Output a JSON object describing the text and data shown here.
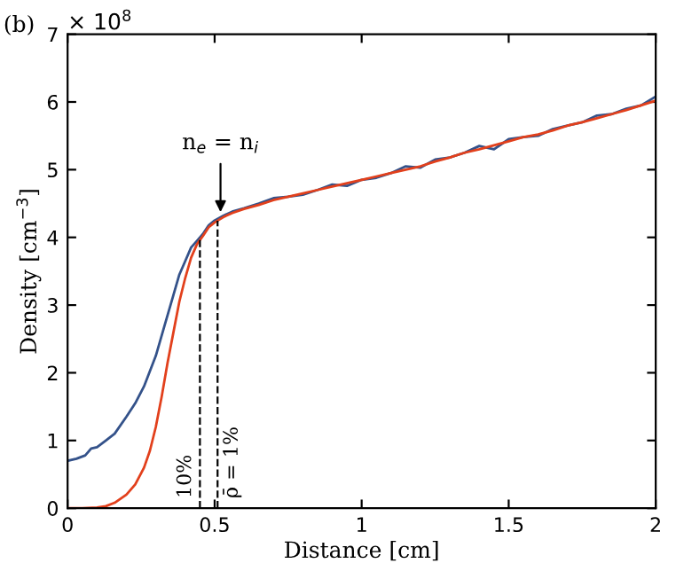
{
  "chart_data": {
    "type": "line",
    "title": "(b)",
    "xlabel": "Distance [cm]",
    "ylabel": "Density [cm$^{−3}$]",
    "xlim": [
      0,
      2
    ],
    "xticks": [
      0,
      0.5,
      1,
      1.5,
      2
    ],
    "ylim": [
      0,
      7
    ],
    "yticks": [
      0,
      1,
      2,
      3,
      4,
      5,
      6,
      7
    ],
    "series": [
      {
        "color": "#34528a",
        "x": [
          0,
          0.03,
          0.06,
          0.08,
          0.1,
          0.13,
          0.16,
          0.2,
          0.23,
          0.26,
          0.3,
          0.33,
          0.36,
          0.38,
          0.4,
          0.42,
          0.44,
          0.46,
          0.48,
          0.5,
          0.53,
          0.56,
          0.6,
          0.65,
          0.7,
          0.75,
          0.8,
          0.85,
          0.9,
          0.95,
          1.0,
          1.05,
          1.1,
          1.15,
          1.2,
          1.25,
          1.3,
          1.35,
          1.4,
          1.45,
          1.5,
          1.55,
          1.6,
          1.65,
          1.7,
          1.75,
          1.8,
          1.85,
          1.9,
          1.95,
          2.0
        ],
        "values": [
          0.7,
          0.73,
          0.78,
          0.88,
          0.9,
          1.0,
          1.1,
          1.35,
          1.55,
          1.8,
          2.25,
          2.7,
          3.15,
          3.45,
          3.65,
          3.85,
          3.95,
          4.05,
          4.18,
          4.25,
          4.32,
          4.38,
          4.43,
          4.5,
          4.58,
          4.6,
          4.63,
          4.7,
          4.78,
          4.76,
          4.85,
          4.88,
          4.95,
          5.05,
          5.03,
          5.15,
          5.18,
          5.25,
          5.35,
          5.3,
          5.45,
          5.48,
          5.5,
          5.6,
          5.65,
          5.7,
          5.8,
          5.82,
          5.9,
          5.95,
          6.08
        ]
      },
      {
        "color": "#e2401c",
        "x": [
          0,
          0.05,
          0.1,
          0.13,
          0.16,
          0.2,
          0.23,
          0.26,
          0.28,
          0.3,
          0.32,
          0.34,
          0.36,
          0.38,
          0.4,
          0.42,
          0.44,
          0.46,
          0.48,
          0.5,
          0.53,
          0.56,
          0.6,
          0.65,
          0.7,
          0.75,
          0.8,
          0.85,
          0.9,
          0.95,
          1.0,
          1.05,
          1.1,
          1.15,
          1.2,
          1.25,
          1.3,
          1.35,
          1.4,
          1.45,
          1.5,
          1.55,
          1.6,
          1.65,
          1.7,
          1.75,
          1.8,
          1.85,
          1.9,
          1.95,
          2.0
        ],
        "values": [
          0,
          0,
          0.01,
          0.03,
          0.08,
          0.2,
          0.35,
          0.6,
          0.85,
          1.2,
          1.65,
          2.15,
          2.6,
          3.05,
          3.4,
          3.7,
          3.9,
          4.02,
          4.15,
          4.22,
          4.3,
          4.36,
          4.42,
          4.48,
          4.55,
          4.6,
          4.65,
          4.7,
          4.75,
          4.8,
          4.85,
          4.9,
          4.95,
          5.0,
          5.05,
          5.12,
          5.18,
          5.25,
          5.3,
          5.36,
          5.42,
          5.48,
          5.52,
          5.58,
          5.65,
          5.7,
          5.76,
          5.82,
          5.88,
          5.95,
          6.02
        ]
      }
    ],
    "ref_lines": [
      {
        "axis": "x",
        "value": 0.45,
        "color": "#000000",
        "line_style": "dashed"
      },
      {
        "axis": "x",
        "value": 0.51,
        "color": "#000000",
        "line_style": "dashed"
      }
    ],
    "annotations": [
      "× 10$^{8}$",
      {
        "text": "n$_{e}$ = n$_{i}$",
        "x": 0.52,
        "y": 4.3
      },
      {
        "text": "10%",
        "x": 0.45,
        "y": 0
      },
      {
        "text": "ρ̄ = 1%",
        "x": 0.51,
        "y": 0
      }
    ],
    "grid": false,
    "legend": false,
    "line_style": "solid",
    "marker": "none"
  }
}
